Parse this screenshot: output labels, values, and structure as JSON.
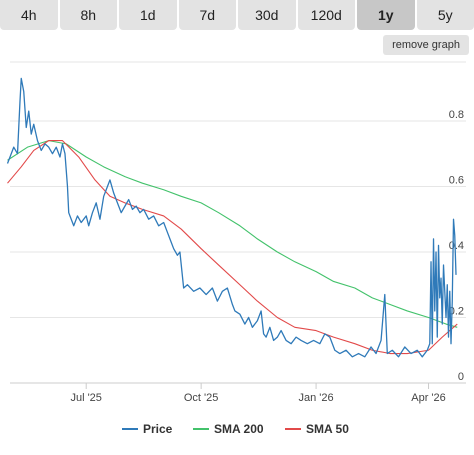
{
  "tabs": [
    {
      "label": "4h",
      "active": false
    },
    {
      "label": "8h",
      "active": false
    },
    {
      "label": "1d",
      "active": false
    },
    {
      "label": "7d",
      "active": false
    },
    {
      "label": "30d",
      "active": false
    },
    {
      "label": "120d",
      "active": false
    },
    {
      "label": "1y",
      "active": true
    },
    {
      "label": "5y",
      "active": false
    }
  ],
  "remove_graph_label": "remove graph",
  "chart_data": {
    "type": "line",
    "x_axis": {
      "type": "date",
      "range": [
        "2025-05-01",
        "2026-05-01"
      ],
      "ticks": [
        {
          "date": "2025-07-01",
          "label": "Jul '25"
        },
        {
          "date": "2025-10-01",
          "label": "Oct '25"
        },
        {
          "date": "2026-01-01",
          "label": "Jan '26"
        },
        {
          "date": "2026-04-01",
          "label": "Apr '26"
        }
      ]
    },
    "y_axis": {
      "position": "right",
      "range": [
        0,
        0.98
      ],
      "ticks": [
        {
          "value": 0,
          "label": "0"
        },
        {
          "value": 0.2,
          "label": "0.2"
        },
        {
          "value": 0.4,
          "label": "0.4"
        },
        {
          "value": 0.6,
          "label": "0.6"
        },
        {
          "value": 0.8,
          "label": "0.8"
        }
      ]
    },
    "grid": "horizontal",
    "legend_position": "bottom",
    "series": [
      {
        "name": "Price",
        "color": "#2f7ab9",
        "points": [
          [
            "2025-04-29",
            0.67
          ],
          [
            "2025-05-01",
            0.69
          ],
          [
            "2025-05-04",
            0.72
          ],
          [
            "2025-05-07",
            0.7
          ],
          [
            "2025-05-09",
            0.86
          ],
          [
            "2025-05-10",
            0.93
          ],
          [
            "2025-05-12",
            0.89
          ],
          [
            "2025-05-14",
            0.78
          ],
          [
            "2025-05-16",
            0.83
          ],
          [
            "2025-05-18",
            0.76
          ],
          [
            "2025-05-20",
            0.79
          ],
          [
            "2025-05-23",
            0.74
          ],
          [
            "2025-05-26",
            0.71
          ],
          [
            "2025-05-29",
            0.73
          ],
          [
            "2025-06-01",
            0.72
          ],
          [
            "2025-06-04",
            0.7
          ],
          [
            "2025-06-07",
            0.72
          ],
          [
            "2025-06-10",
            0.69
          ],
          [
            "2025-06-12",
            0.73
          ],
          [
            "2025-06-14",
            0.7
          ],
          [
            "2025-06-16",
            0.6
          ],
          [
            "2025-06-17",
            0.52
          ],
          [
            "2025-06-19",
            0.5
          ],
          [
            "2025-06-21",
            0.48
          ],
          [
            "2025-06-24",
            0.51
          ],
          [
            "2025-06-27",
            0.49
          ],
          [
            "2025-07-01",
            0.51
          ],
          [
            "2025-07-03",
            0.48
          ],
          [
            "2025-07-06",
            0.52
          ],
          [
            "2025-07-09",
            0.55
          ],
          [
            "2025-07-12",
            0.5
          ],
          [
            "2025-07-15",
            0.57
          ],
          [
            "2025-07-18",
            0.6
          ],
          [
            "2025-07-20",
            0.62
          ],
          [
            "2025-07-23",
            0.58
          ],
          [
            "2025-07-26",
            0.55
          ],
          [
            "2025-07-29",
            0.52
          ],
          [
            "2025-08-01",
            0.54
          ],
          [
            "2025-08-04",
            0.56
          ],
          [
            "2025-08-07",
            0.53
          ],
          [
            "2025-08-10",
            0.54
          ],
          [
            "2025-08-13",
            0.52
          ],
          [
            "2025-08-16",
            0.53
          ],
          [
            "2025-08-20",
            0.5
          ],
          [
            "2025-08-24",
            0.51
          ],
          [
            "2025-08-28",
            0.48
          ],
          [
            "2025-09-01",
            0.49
          ],
          [
            "2025-09-04",
            0.46
          ],
          [
            "2025-09-07",
            0.43
          ],
          [
            "2025-09-09",
            0.41
          ],
          [
            "2025-09-12",
            0.39
          ],
          [
            "2025-09-14",
            0.4
          ],
          [
            "2025-09-17",
            0.29
          ],
          [
            "2025-09-20",
            0.3
          ],
          [
            "2025-09-25",
            0.28
          ],
          [
            "2025-09-30",
            0.29
          ],
          [
            "2025-10-05",
            0.27
          ],
          [
            "2025-10-10",
            0.29
          ],
          [
            "2025-10-14",
            0.25
          ],
          [
            "2025-10-18",
            0.28
          ],
          [
            "2025-10-22",
            0.29
          ],
          [
            "2025-10-26",
            0.24
          ],
          [
            "2025-10-28",
            0.22
          ],
          [
            "2025-11-01",
            0.21
          ],
          [
            "2025-11-05",
            0.18
          ],
          [
            "2025-11-08",
            0.2
          ],
          [
            "2025-11-11",
            0.17
          ],
          [
            "2025-11-15",
            0.19
          ],
          [
            "2025-11-18",
            0.22
          ],
          [
            "2025-11-20",
            0.15
          ],
          [
            "2025-11-22",
            0.14
          ],
          [
            "2025-11-25",
            0.17
          ],
          [
            "2025-11-28",
            0.13
          ],
          [
            "2025-12-01",
            0.14
          ],
          [
            "2025-12-04",
            0.16
          ],
          [
            "2025-12-08",
            0.13
          ],
          [
            "2025-12-12",
            0.12
          ],
          [
            "2025-12-16",
            0.14
          ],
          [
            "2025-12-20",
            0.13
          ],
          [
            "2025-12-25",
            0.12
          ],
          [
            "2025-12-30",
            0.13
          ],
          [
            "2026-01-04",
            0.12
          ],
          [
            "2026-01-08",
            0.15
          ],
          [
            "2026-01-12",
            0.14
          ],
          [
            "2026-01-16",
            0.1
          ],
          [
            "2026-01-20",
            0.09
          ],
          [
            "2026-01-25",
            0.1
          ],
          [
            "2026-01-30",
            0.08
          ],
          [
            "2026-02-04",
            0.09
          ],
          [
            "2026-02-09",
            0.08
          ],
          [
            "2026-02-14",
            0.11
          ],
          [
            "2026-02-18",
            0.09
          ],
          [
            "2026-02-22",
            0.13
          ],
          [
            "2026-02-25",
            0.27
          ],
          [
            "2026-02-27",
            0.09
          ],
          [
            "2026-03-03",
            0.1
          ],
          [
            "2026-03-08",
            0.08
          ],
          [
            "2026-03-13",
            0.11
          ],
          [
            "2026-03-18",
            0.09
          ],
          [
            "2026-03-23",
            0.1
          ],
          [
            "2026-03-27",
            0.08
          ],
          [
            "2026-03-31",
            0.1
          ],
          [
            "2026-04-02",
            0.12
          ],
          [
            "2026-04-03",
            0.37
          ],
          [
            "2026-04-04",
            0.12
          ],
          [
            "2026-04-05",
            0.44
          ],
          [
            "2026-04-06",
            0.22
          ],
          [
            "2026-04-07",
            0.4
          ],
          [
            "2026-04-08",
            0.14
          ],
          [
            "2026-04-09",
            0.42
          ],
          [
            "2026-04-10",
            0.26
          ],
          [
            "2026-04-11",
            0.32
          ],
          [
            "2026-04-12",
            0.18
          ],
          [
            "2026-04-13",
            0.36
          ],
          [
            "2026-04-14",
            0.28
          ],
          [
            "2026-04-15",
            0.2
          ],
          [
            "2026-04-16",
            0.3
          ],
          [
            "2026-04-17",
            0.14
          ],
          [
            "2026-04-18",
            0.28
          ],
          [
            "2026-04-19",
            0.12
          ],
          [
            "2026-04-20",
            0.25
          ],
          [
            "2026-04-21",
            0.5
          ],
          [
            "2026-04-22",
            0.45
          ],
          [
            "2026-04-23",
            0.33
          ]
        ]
      },
      {
        "name": "SMA 200",
        "color": "#43c26b",
        "points": [
          [
            "2025-04-29",
            0.68
          ],
          [
            "2025-05-15",
            0.72
          ],
          [
            "2025-06-01",
            0.74
          ],
          [
            "2025-06-15",
            0.73
          ],
          [
            "2025-07-01",
            0.69
          ],
          [
            "2025-07-15",
            0.66
          ],
          [
            "2025-08-01",
            0.63
          ],
          [
            "2025-08-15",
            0.61
          ],
          [
            "2025-09-01",
            0.59
          ],
          [
            "2025-09-15",
            0.57
          ],
          [
            "2025-10-01",
            0.55
          ],
          [
            "2025-10-15",
            0.52
          ],
          [
            "2025-11-01",
            0.48
          ],
          [
            "2025-11-15",
            0.44
          ],
          [
            "2025-12-01",
            0.4
          ],
          [
            "2025-12-15",
            0.37
          ],
          [
            "2026-01-01",
            0.34
          ],
          [
            "2026-01-15",
            0.31
          ],
          [
            "2026-02-01",
            0.29
          ],
          [
            "2026-02-15",
            0.26
          ],
          [
            "2026-03-01",
            0.24
          ],
          [
            "2026-03-15",
            0.22
          ],
          [
            "2026-04-01",
            0.2
          ],
          [
            "2026-04-15",
            0.18
          ],
          [
            "2026-04-24",
            0.17
          ]
        ]
      },
      {
        "name": "SMA 50",
        "color": "#e24a4a",
        "points": [
          [
            "2025-04-29",
            0.61
          ],
          [
            "2025-05-10",
            0.66
          ],
          [
            "2025-05-20",
            0.71
          ],
          [
            "2025-06-01",
            0.74
          ],
          [
            "2025-06-12",
            0.74
          ],
          [
            "2025-06-25",
            0.69
          ],
          [
            "2025-07-08",
            0.62
          ],
          [
            "2025-07-20",
            0.57
          ],
          [
            "2025-08-01",
            0.55
          ],
          [
            "2025-08-15",
            0.53
          ],
          [
            "2025-09-01",
            0.51
          ],
          [
            "2025-09-15",
            0.47
          ],
          [
            "2025-10-01",
            0.41
          ],
          [
            "2025-10-15",
            0.36
          ],
          [
            "2025-11-01",
            0.3
          ],
          [
            "2025-11-15",
            0.25
          ],
          [
            "2025-12-01",
            0.2
          ],
          [
            "2025-12-15",
            0.17
          ],
          [
            "2026-01-01",
            0.16
          ],
          [
            "2026-01-15",
            0.14
          ],
          [
            "2026-02-01",
            0.12
          ],
          [
            "2026-02-15",
            0.1
          ],
          [
            "2026-03-01",
            0.09
          ],
          [
            "2026-03-15",
            0.09
          ],
          [
            "2026-04-01",
            0.1
          ],
          [
            "2026-04-12",
            0.14
          ],
          [
            "2026-04-24",
            0.18
          ]
        ]
      }
    ]
  }
}
